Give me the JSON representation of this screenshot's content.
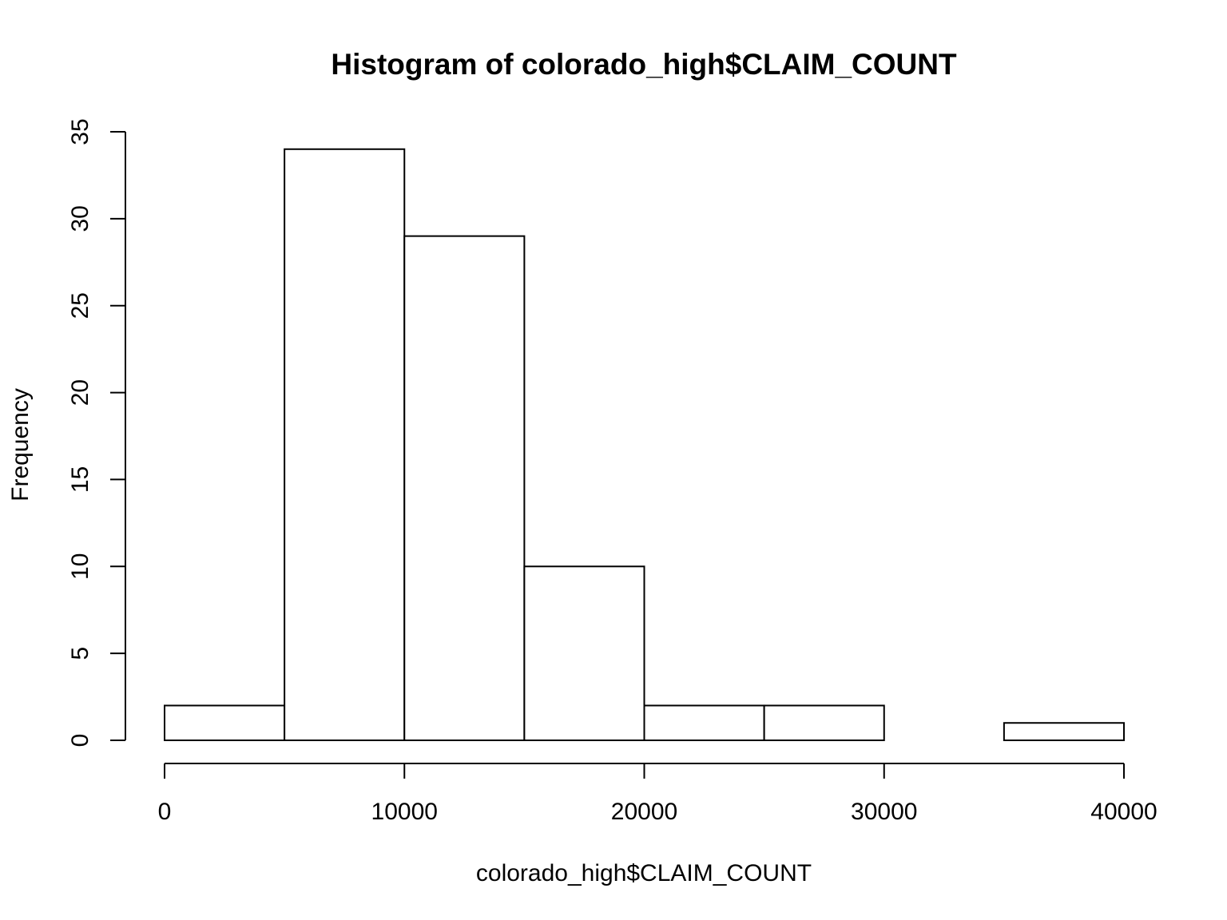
{
  "chart_data": {
    "type": "histogram",
    "title": "Histogram of colorado_high$CLAIM_COUNT",
    "xlabel": "colorado_high$CLAIM_COUNT",
    "ylabel": "Frequency",
    "bins": [
      {
        "start": 0,
        "end": 5000,
        "count": 2
      },
      {
        "start": 5000,
        "end": 10000,
        "count": 34
      },
      {
        "start": 10000,
        "end": 15000,
        "count": 29
      },
      {
        "start": 15000,
        "end": 20000,
        "count": 10
      },
      {
        "start": 20000,
        "end": 25000,
        "count": 2
      },
      {
        "start": 25000,
        "end": 30000,
        "count": 2
      },
      {
        "start": 30000,
        "end": 35000,
        "count": 0
      },
      {
        "start": 35000,
        "end": 40000,
        "count": 1
      }
    ],
    "xlim": [
      0,
      40000
    ],
    "ylim": [
      0,
      35
    ],
    "x_ticks": [
      0,
      10000,
      20000,
      30000,
      40000
    ],
    "x_tick_labels": [
      "0",
      "10000",
      "20000",
      "30000",
      "40000"
    ],
    "y_ticks": [
      0,
      5,
      10,
      15,
      20,
      25,
      30,
      35
    ],
    "y_tick_labels": [
      "0",
      "5",
      "10",
      "15",
      "20",
      "25",
      "30",
      "35"
    ],
    "grid": false,
    "bar_fill": "#ffffff",
    "bar_stroke": "#000000"
  }
}
